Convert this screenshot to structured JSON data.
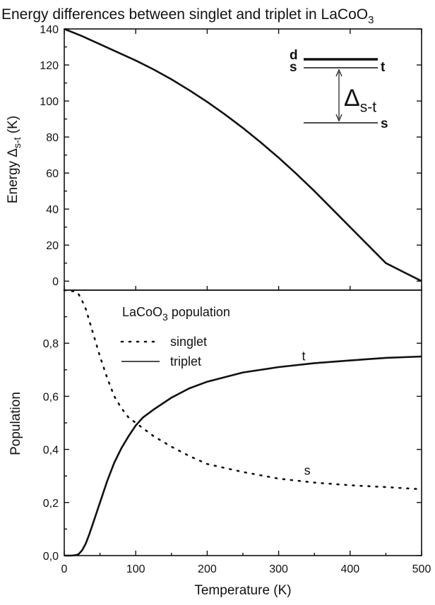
{
  "chart_data": [
    {
      "type": "line",
      "title": "Energy differences between singlet and triplet in LaCoO3",
      "ylabel": "Energy  Δs-t (K)",
      "xlabel": "",
      "xlim": [
        0,
        500
      ],
      "ylim": [
        -5,
        140
      ],
      "yticks": [
        "140",
        "120",
        "100",
        "80",
        "60",
        "40",
        "20",
        "0"
      ],
      "ytick_values": [
        140,
        120,
        100,
        80,
        60,
        40,
        20,
        0
      ],
      "series": [
        {
          "x": [
            0,
            25,
            50,
            75,
            100,
            125,
            150,
            175,
            200,
            225,
            250,
            275,
            300,
            325,
            350,
            375,
            400,
            425,
            450,
            475,
            500
          ],
          "values": [
            140,
            136,
            131.5,
            127,
            122.5,
            117.5,
            112,
            106,
            99.5,
            92.5,
            85,
            77,
            68.5,
            59.5,
            50,
            40,
            30,
            20,
            10,
            5,
            0
          ]
        }
      ],
      "grid": false,
      "inset_diagram": {
        "upper_level_labels": [
          "d",
          "s"
        ],
        "upper_right_label": "t",
        "gap_label": "Δs-t",
        "lower_level_label": "s"
      }
    },
    {
      "type": "line",
      "ylabel": "Population",
      "xlabel": "Temperature (K)",
      "xlim": [
        0,
        500
      ],
      "ylim": [
        0,
        1.0
      ],
      "xticks": [
        "0",
        "100",
        "200",
        "300",
        "400",
        "500"
      ],
      "xtick_values": [
        0,
        100,
        200,
        300,
        400,
        500
      ],
      "yticks": [
        "0,0",
        "0,2",
        "0,4",
        "0,6",
        "0,8"
      ],
      "ytick_values": [
        0,
        0.2,
        0.4,
        0.6,
        0.8
      ],
      "legend_title": "LaCoO3 population",
      "legend_position": "top-left",
      "series": [
        {
          "name": "singlet",
          "style": "dotted",
          "curve_label": "s",
          "x": [
            0,
            15,
            20,
            25,
            30,
            40,
            50,
            60,
            70,
            80,
            90,
            100,
            110,
            125,
            150,
            175,
            200,
            250,
            300,
            350,
            400,
            450,
            500
          ],
          "values": [
            1.0,
            0.995,
            0.985,
            0.96,
            0.93,
            0.84,
            0.75,
            0.67,
            0.6,
            0.555,
            0.52,
            0.5,
            0.48,
            0.45,
            0.41,
            0.375,
            0.345,
            0.315,
            0.29,
            0.275,
            0.265,
            0.258,
            0.25
          ]
        },
        {
          "name": "triplet",
          "style": "solid",
          "curve_label": "t",
          "x": [
            0,
            10,
            15,
            20,
            25,
            30,
            35,
            40,
            50,
            60,
            70,
            80,
            90,
            100,
            110,
            125,
            150,
            175,
            200,
            250,
            300,
            350,
            400,
            450,
            500
          ],
          "values": [
            0,
            0,
            0.001,
            0.005,
            0.02,
            0.045,
            0.08,
            0.12,
            0.2,
            0.28,
            0.35,
            0.405,
            0.45,
            0.49,
            0.52,
            0.55,
            0.595,
            0.63,
            0.655,
            0.69,
            0.71,
            0.725,
            0.735,
            0.745,
            0.75
          ]
        }
      ],
      "grid": false
    }
  ]
}
